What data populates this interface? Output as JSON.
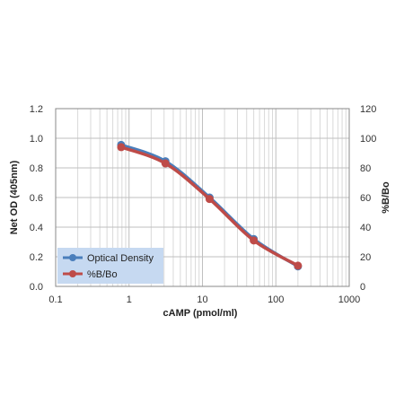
{
  "chart_data": {
    "type": "line",
    "x": [
      0.78,
      3.13,
      12.5,
      50,
      200
    ],
    "series": [
      {
        "name": "Optical Density",
        "axis": "left",
        "color": "#4a7ebb",
        "values": [
          0.955,
          0.845,
          0.6,
          0.32,
          0.135
        ]
      },
      {
        "name": "%B/Bo",
        "axis": "right",
        "color": "#be4b48",
        "values": [
          94,
          83,
          59,
          31,
          14
        ]
      }
    ],
    "xlabel": "cAMP (pmol/ml)",
    "ylabel": "Net OD (405nm)",
    "y2label": "%B/Bo",
    "xscale": "log",
    "xlim": [
      0.1,
      1000
    ],
    "xticks": [
      "0.1",
      "1",
      "10",
      "100",
      "1000"
    ],
    "ylim": [
      0,
      1.2
    ],
    "yticks": [
      "0.0",
      "0.2",
      "0.4",
      "0.6",
      "0.8",
      "1.0",
      "1.2"
    ],
    "y2lim": [
      0,
      120
    ],
    "y2ticks": [
      "0",
      "20",
      "40",
      "60",
      "80",
      "100",
      "120"
    ],
    "grid": true,
    "legend": "bottom-left",
    "legend_background": "#c6d9f1"
  }
}
